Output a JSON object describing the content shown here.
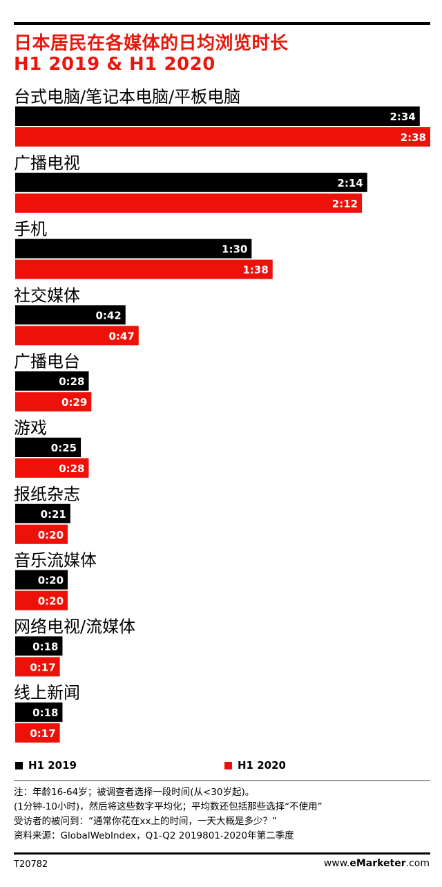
{
  "title_lines": [
    "日本居民在各媒体的日均浏览时长",
    "H1 2019 & H1 2020"
  ],
  "colors": {
    "h1_2019": "#000000",
    "h1_2020": "#ee1109",
    "title": "#e8170c"
  },
  "legend": [
    "H1 2019",
    "H1 2020"
  ],
  "chart_data": {
    "type": "bar",
    "orientation": "horizontal",
    "unit": "hours:minutes",
    "categories": [
      "台式电脑/笔记本电脑/平板电脑",
      "广播电视",
      "手机",
      "社交媒体",
      "广播电台",
      "游戏",
      "报纸杂志",
      "音乐流媒体",
      "网络电视/流媒体",
      "线上新闻"
    ],
    "series": [
      {
        "name": "H1 2019",
        "labels": [
          "2:34",
          "2:14",
          "1:30",
          "0:42",
          "0:28",
          "0:25",
          "0:21",
          "0:20",
          "0:18",
          "0:18"
        ],
        "values_minutes": [
          154,
          134,
          90,
          42,
          28,
          25,
          21,
          20,
          18,
          18
        ]
      },
      {
        "name": "H1 2020",
        "labels": [
          "2:38",
          "2:12",
          "1:38",
          "0:47",
          "0:29",
          "0:28",
          "0:20",
          "0:20",
          "0:17",
          "0:17"
        ],
        "values_minutes": [
          158,
          132,
          98,
          47,
          29,
          28,
          20,
          20,
          17,
          17
        ]
      }
    ],
    "legend_position": "bottom"
  },
  "notes": [
    "注：年龄16-64岁；被调查者选择一段时间(从<30岁起)。",
    "(1分钟-10小时)，然后将这些数字平均化；平均数还包括那些选择“不使用”",
    "受访者的被问到：“通常你花在xx上的时间，一天大概是多少？”",
    "资料来源：GlobalWebIndex，Q1-Q2 2019801-2020年第二季度"
  ],
  "footer": {
    "code": "T20782",
    "site_prefix": "www.",
    "site_brand": "eMarketer",
    "site_suffix": ".com"
  }
}
